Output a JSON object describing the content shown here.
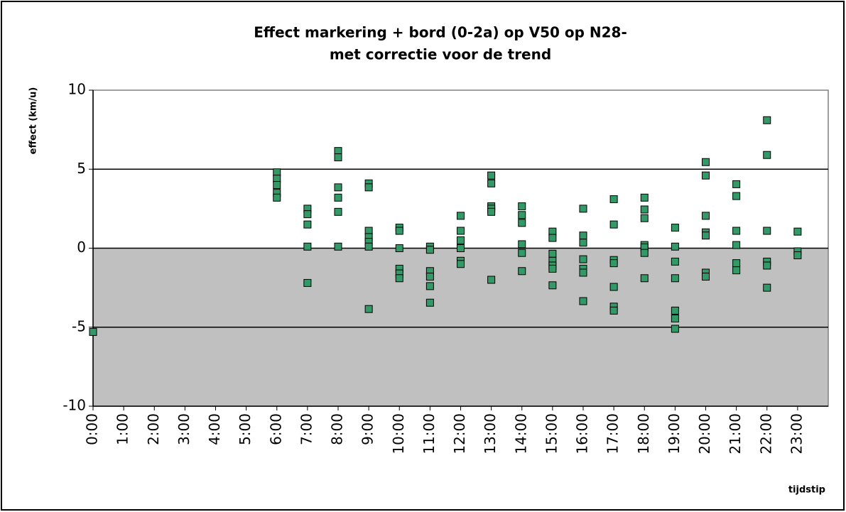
{
  "chart_data": {
    "type": "scatter",
    "title": [
      "Effect markering + bord (0-2a) op V50 op N28-",
      "met correctie voor de trend"
    ],
    "y_label": "effect (km/u)",
    "x_label": "tijdstip",
    "xlim": [
      0,
      24
    ],
    "ylim": [
      -10,
      10
    ],
    "xticks": [
      {
        "value": 0,
        "label": "0:00"
      },
      {
        "value": 1,
        "label": "1:00"
      },
      {
        "value": 2,
        "label": "2:00"
      },
      {
        "value": 3,
        "label": "3:00"
      },
      {
        "value": 4,
        "label": "4:00"
      },
      {
        "value": 5,
        "label": "5:00"
      },
      {
        "value": 6,
        "label": "6:00"
      },
      {
        "value": 7,
        "label": "7:00"
      },
      {
        "value": 8,
        "label": "8:00"
      },
      {
        "value": 9,
        "label": "9:00"
      },
      {
        "value": 10,
        "label": "10:00"
      },
      {
        "value": 11,
        "label": "11:00"
      },
      {
        "value": 12,
        "label": "12:00"
      },
      {
        "value": 13,
        "label": "13:00"
      },
      {
        "value": 14,
        "label": "14:00"
      },
      {
        "value": 15,
        "label": "15:00"
      },
      {
        "value": 16,
        "label": "16:00"
      },
      {
        "value": 17,
        "label": "17:00"
      },
      {
        "value": 18,
        "label": "18:00"
      },
      {
        "value": 19,
        "label": "19:00"
      },
      {
        "value": 20,
        "label": "20:00"
      },
      {
        "value": 21,
        "label": "21:00"
      },
      {
        "value": 22,
        "label": "22:00"
      },
      {
        "value": 23,
        "label": "23:00"
      }
    ],
    "yticks": [
      -10,
      -5,
      0,
      5,
      10
    ],
    "grid": true,
    "negative_fill": "#c0c0c0",
    "series": [
      {
        "color": "#339966",
        "x": [
          0,
          6,
          6,
          6,
          6,
          6,
          7,
          7,
          7,
          7,
          7,
          8,
          8,
          8,
          8,
          8,
          8,
          9,
          9,
          9,
          9,
          9,
          9,
          9,
          10,
          10,
          10,
          10,
          10,
          10,
          11,
          11,
          11,
          11,
          11,
          11,
          12,
          12,
          12,
          12,
          12,
          12,
          13,
          13,
          13,
          13,
          13,
          13,
          14,
          14,
          14,
          14,
          14,
          14,
          15,
          15,
          15,
          15,
          15,
          15,
          15,
          16,
          16,
          16,
          16,
          16,
          16,
          16,
          17,
          17,
          17,
          17,
          17,
          17,
          17,
          18,
          18,
          18,
          18,
          18,
          18,
          18,
          19,
          19,
          19,
          19,
          19,
          19,
          19,
          20,
          20,
          20,
          20,
          20,
          20,
          20,
          21,
          21,
          21,
          21,
          21,
          21,
          22,
          22,
          22,
          22,
          22,
          22,
          23,
          23,
          23
        ],
        "y": [
          -5.3,
          4.8,
          4.4,
          4.0,
          3.5,
          3.2,
          2.5,
          2.15,
          1.5,
          0.1,
          -2.2,
          6.15,
          5.75,
          3.85,
          3.2,
          2.3,
          0.1,
          4.1,
          3.85,
          1.1,
          0.7,
          0.4,
          0.1,
          -3.85,
          1.3,
          1.1,
          0,
          -1.3,
          -1.6,
          -1.9,
          0.1,
          -0.1,
          -1.45,
          -1.8,
          -2.4,
          -3.45,
          2.05,
          1.1,
          0.5,
          0,
          -0.8,
          -1.0,
          4.6,
          4.1,
          2.65,
          2.5,
          2.3,
          -2.0,
          2.65,
          2.1,
          1.6,
          0.25,
          -0.3,
          -1.45,
          1.05,
          0.65,
          -0.35,
          -0.8,
          -1.1,
          -1.3,
          -2.35,
          2.5,
          0.8,
          0.35,
          -0.7,
          -1.3,
          -1.55,
          -3.35,
          3.1,
          1.5,
          -0.75,
          -0.95,
          -2.45,
          -3.7,
          -3.95,
          3.2,
          2.45,
          1.9,
          0.2,
          0.05,
          -0.3,
          -1.9,
          1.3,
          0.1,
          -0.85,
          -1.9,
          -3.95,
          -4.45,
          -5.1,
          5.45,
          4.6,
          2.05,
          1.0,
          0.8,
          -1.55,
          -1.8,
          4.05,
          3.3,
          1.1,
          0.2,
          -0.95,
          -1.4,
          8.1,
          5.9,
          1.1,
          -0.85,
          -1.1,
          -2.5,
          1.05,
          -0.2,
          -0.45
        ]
      }
    ]
  }
}
